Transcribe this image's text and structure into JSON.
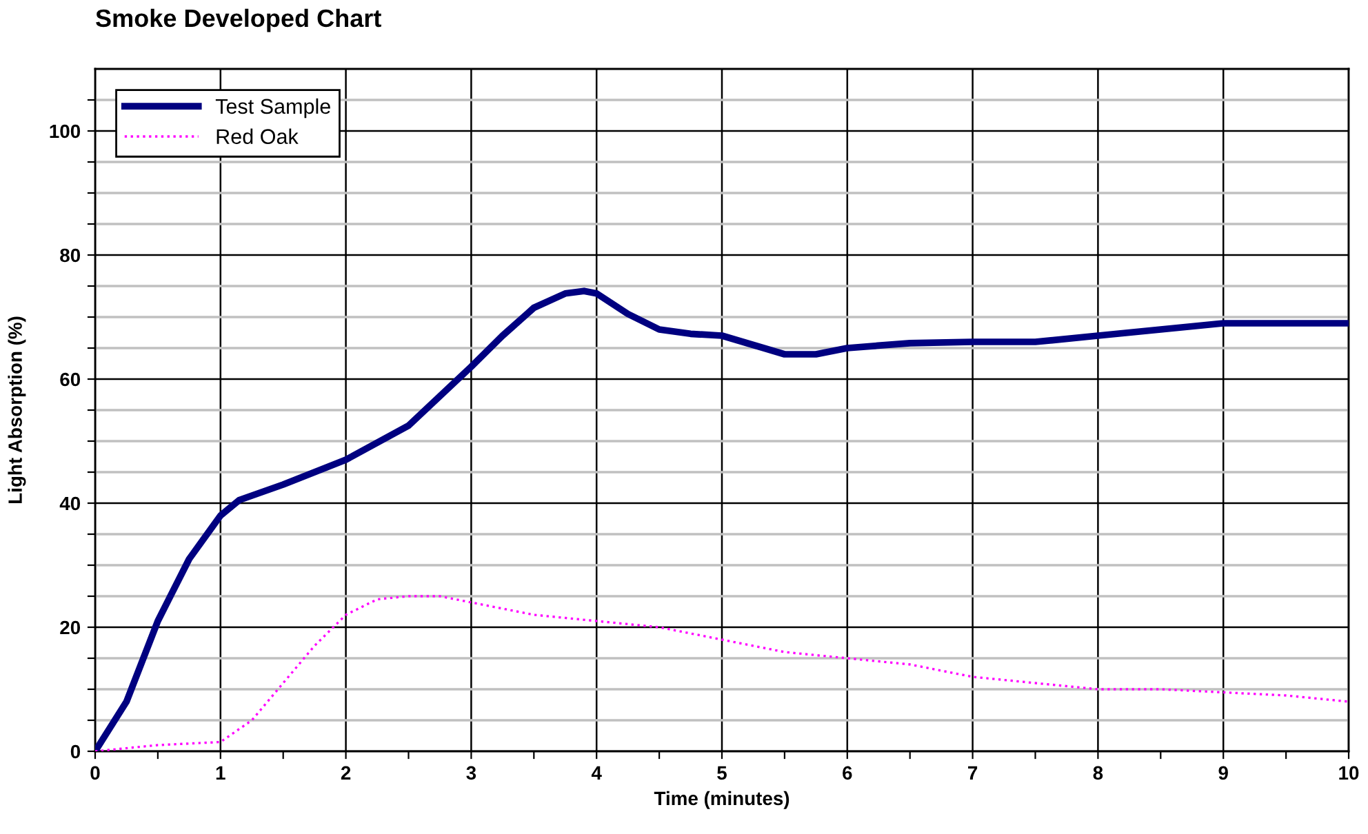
{
  "chart_data": {
    "type": "line",
    "title": "Smoke Developed Chart",
    "xlabel": "Time (minutes)",
    "ylabel": "Light Absorption (%)",
    "xlim": [
      0,
      10
    ],
    "ylim": [
      0,
      110
    ],
    "xticks": [
      0,
      {
        "value": 0.5,
        "label": null
      },
      1,
      {
        "value": 1.5,
        "label": null
      },
      2,
      {
        "value": 2.5,
        "label": null
      },
      3,
      {
        "value": 3.5,
        "label": null
      },
      4,
      {
        "value": 4.5,
        "label": null
      },
      5,
      {
        "value": 5.5,
        "label": null
      },
      6,
      {
        "value": 6.5,
        "label": null
      },
      7,
      {
        "value": 7.5,
        "label": null
      },
      8,
      {
        "value": 8.5,
        "label": null
      },
      9,
      {
        "value": 9.5,
        "label": null
      },
      10
    ],
    "yticks": [
      0,
      {
        "value": 5,
        "label": null
      },
      {
        "value": 10,
        "label": null
      },
      {
        "value": 15,
        "label": null
      },
      20,
      {
        "value": 25,
        "label": null
      },
      {
        "value": 30,
        "label": null
      },
      {
        "value": 35,
        "label": null
      },
      40,
      {
        "value": 45,
        "label": null
      },
      {
        "value": 50,
        "label": null
      },
      {
        "value": 55,
        "label": null
      },
      60,
      {
        "value": 65,
        "label": null
      },
      {
        "value": 70,
        "label": null
      },
      {
        "value": 75,
        "label": null
      },
      80,
      {
        "value": 85,
        "label": null
      },
      {
        "value": 90,
        "label": null
      },
      {
        "value": 95,
        "label": null
      },
      100,
      {
        "value": 105,
        "label": null
      }
    ],
    "grid": true,
    "legend": "top left",
    "marker": "none",
    "series": [
      {
        "name": "Test Sample",
        "color": "#000080",
        "line_style": "solid",
        "x": [
          0,
          0.25,
          0.5,
          0.75,
          1,
          1.15,
          1.5,
          2,
          2.5,
          3,
          3.25,
          3.5,
          3.75,
          3.9,
          4,
          4.25,
          4.5,
          4.75,
          5,
          5.25,
          5.5,
          5.75,
          6,
          6.5,
          7,
          7.5,
          8,
          8.5,
          9,
          9.5,
          10
        ],
        "values": [
          0,
          8,
          21,
          31,
          38,
          40.5,
          43,
          47,
          52.5,
          62,
          67,
          71.5,
          73.8,
          74.2,
          73.8,
          70.5,
          68,
          67.3,
          67,
          65.5,
          64,
          64,
          65,
          65.8,
          66,
          66,
          67,
          68,
          69,
          69,
          69
        ]
      },
      {
        "name": "Red Oak",
        "color": "#ff00ff",
        "line_style": "dotted",
        "x": [
          0,
          0.5,
          1,
          1.25,
          1.5,
          1.75,
          2,
          2.25,
          2.5,
          2.75,
          3,
          3.5,
          4,
          4.5,
          5,
          5.5,
          6,
          6.5,
          7,
          7.5,
          8,
          8.5,
          9,
          9.5,
          10
        ],
        "values": [
          0,
          1,
          1.5,
          5,
          11,
          17,
          22,
          24.5,
          25,
          25,
          24,
          22,
          21,
          20,
          18,
          16,
          15,
          14,
          12,
          11,
          10,
          10,
          9.5,
          9,
          8
        ]
      }
    ]
  }
}
